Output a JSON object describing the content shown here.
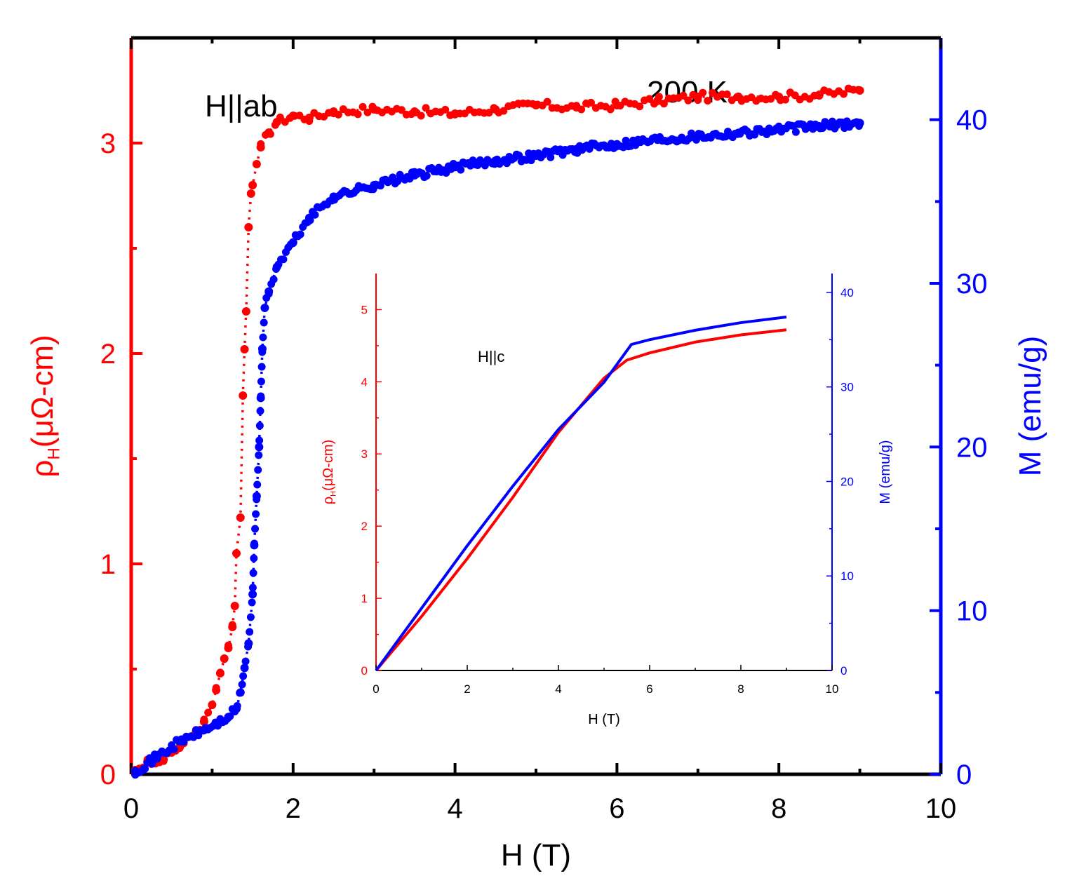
{
  "chart_data": [
    {
      "id": "main",
      "type": "scatter",
      "annotations": [
        "H||ab",
        "200 K"
      ],
      "xlabel": "H (T)",
      "ylabel_left": {
        "base": "ρ",
        "sub": "H",
        "rest": "(μΩ-cm)"
      },
      "ylabel_right": "M (emu/g)",
      "xlim": [
        0,
        10
      ],
      "ylim_left": [
        0,
        3.5
      ],
      "ylim_right": [
        0,
        45
      ],
      "x_ticks": [
        "0",
        "2",
        "4",
        "6",
        "8",
        "10"
      ],
      "y_left_ticks": [
        "0",
        "1",
        "2",
        "3"
      ],
      "y_right_ticks": [
        "0",
        "10",
        "20",
        "30",
        "40"
      ],
      "colors": {
        "left": "#ff0000",
        "right": "#0000ff",
        "axis": "#000000"
      },
      "series": [
        {
          "name": "ρH",
          "axis": "left",
          "color": "#ff0000",
          "x": [
            0.05,
            0.2,
            0.4,
            0.6,
            0.8,
            0.9,
            1.0,
            1.05,
            1.1,
            1.15,
            1.2,
            1.25,
            1.28,
            1.3,
            1.35,
            1.38,
            1.4,
            1.42,
            1.45,
            1.48,
            1.5,
            1.55,
            1.6,
            1.7,
            1.8,
            2.0,
            2.2,
            2.5,
            3.0,
            3.5,
            4.0,
            4.5,
            5.0,
            5.5,
            6.0,
            6.5,
            7.0,
            7.5,
            8.0,
            8.5,
            9.0
          ],
          "y": [
            0.02,
            0.06,
            0.07,
            0.13,
            0.2,
            0.25,
            0.33,
            0.4,
            0.48,
            0.55,
            0.6,
            0.7,
            0.8,
            1.05,
            1.22,
            1.8,
            2.02,
            2.2,
            2.6,
            2.76,
            2.8,
            2.9,
            2.98,
            3.05,
            3.1,
            3.13,
            3.12,
            3.15,
            3.16,
            3.15,
            3.14,
            3.16,
            3.18,
            3.17,
            3.18,
            3.2,
            3.22,
            3.22,
            3.22,
            3.23,
            3.25
          ]
        },
        {
          "name": "M",
          "axis": "right",
          "color": "#0000ff",
          "x": [
            0.05,
            0.3,
            0.6,
            0.9,
            1.1,
            1.2,
            1.3,
            1.35,
            1.4,
            1.45,
            1.5,
            1.52,
            1.55,
            1.58,
            1.6,
            1.62,
            1.65,
            1.7,
            1.8,
            2.0,
            2.2,
            2.5,
            3.0,
            3.5,
            4.0,
            4.5,
            5.0,
            5.5,
            6.0,
            6.5,
            7.0,
            7.5,
            8.0,
            8.5,
            9.0
          ],
          "y": [
            0.2,
            1.0,
            2.0,
            2.7,
            3.2,
            3.5,
            4.0,
            5.0,
            6.5,
            8.0,
            11.0,
            14.0,
            17.0,
            20.0,
            23.0,
            26.0,
            28.5,
            29.5,
            31.0,
            32.5,
            34.0,
            35.3,
            36.0,
            36.6,
            37.1,
            37.5,
            37.8,
            38.2,
            38.5,
            38.8,
            39.0,
            39.2,
            39.4,
            39.6,
            39.8
          ]
        }
      ]
    },
    {
      "id": "inset",
      "type": "line",
      "annotations": [
        "H||c"
      ],
      "xlabel": "H (T)",
      "ylabel_left": {
        "base": "ρ",
        "sub": "H",
        "rest": "(μΩ-cm)"
      },
      "ylabel_right": "M (emu/g)",
      "xlim": [
        0,
        10
      ],
      "ylim_left": [
        0,
        5.5
      ],
      "ylim_right": [
        0,
        42
      ],
      "x_ticks": [
        "0",
        "2",
        "4",
        "6",
        "8",
        "10"
      ],
      "y_left_ticks": [
        "0",
        "1",
        "2",
        "3",
        "4",
        "5"
      ],
      "y_right_ticks": [
        "0",
        "10",
        "20",
        "30",
        "40"
      ],
      "series": [
        {
          "name": "ρH",
          "axis": "left",
          "color": "#ff0000",
          "x": [
            0,
            1,
            2,
            3,
            4,
            5,
            5.5,
            6,
            7,
            8,
            9
          ],
          "y": [
            0,
            0.75,
            1.55,
            2.4,
            3.3,
            4.05,
            4.3,
            4.4,
            4.55,
            4.65,
            4.72
          ]
        },
        {
          "name": "M",
          "axis": "right",
          "color": "#0000ff",
          "x": [
            0,
            1,
            2,
            3,
            4,
            5,
            5.6,
            6,
            7,
            8,
            9
          ],
          "y": [
            0,
            6.6,
            13.2,
            19.5,
            25.5,
            30.5,
            34.5,
            35.0,
            36.0,
            36.8,
            37.4
          ]
        }
      ]
    }
  ]
}
